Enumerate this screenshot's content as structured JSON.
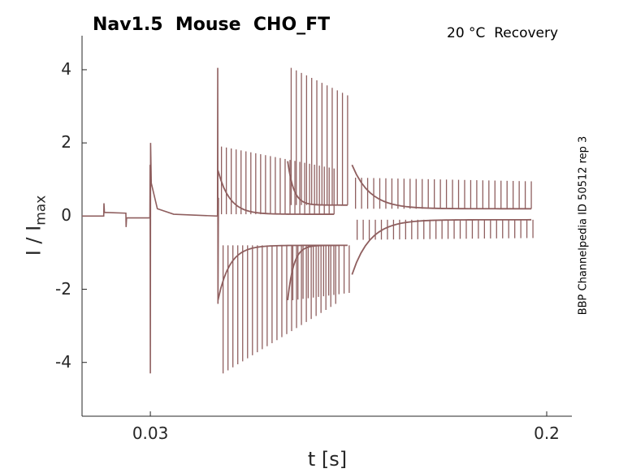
{
  "chart_data": {
    "type": "line",
    "title": "Nav1.5  Mouse  CHO_FT",
    "subtitle": "20 °C  Recovery",
    "side_label": "BBP Channelpedia ID 50512 rep 3",
    "xlabel": "t [s]",
    "ylabel_main": "I / I",
    "ylabel_sub": "max",
    "xlim": [
      0.0007,
      0.2108
    ],
    "ylim": [
      -5.47,
      4.93
    ],
    "xticks": [
      {
        "value": 0.03,
        "label": "0.03"
      },
      {
        "value": 0.2,
        "label": "0.2"
      }
    ],
    "yticks": [
      {
        "value": 4,
        "label": "4"
      },
      {
        "value": 2,
        "label": "2"
      },
      {
        "value": 0,
        "label": "0"
      },
      {
        "value": -2,
        "label": "-2"
      },
      {
        "value": -4,
        "label": "-4"
      }
    ],
    "color": "#8f5f5f",
    "baseline": [
      [
        0.0007,
        0
      ],
      [
        0.01,
        0.0
      ],
      [
        0.0101,
        0.35
      ],
      [
        0.0103,
        0.1
      ],
      [
        0.0195,
        0.08
      ],
      [
        0.0196,
        -0.3
      ],
      [
        0.0198,
        -0.05
      ],
      [
        0.0298,
        -0.05
      ],
      [
        0.0299,
        1.4
      ],
      [
        0.03,
        -4.3
      ],
      [
        0.0301,
        2.0
      ],
      [
        0.0304,
        0.9
      ],
      [
        0.033,
        0.2
      ],
      [
        0.04,
        0.05
      ],
      [
        0.0588,
        0.0
      ],
      [
        0.0589,
        4.05
      ],
      [
        0.059,
        -2.4
      ],
      [
        0.0592,
        0.5
      ]
    ],
    "spike_groups": [
      {
        "t0": 0.0605,
        "step": 0.0021,
        "count": 24,
        "up": [
          1.9,
          1.3
        ],
        "down": [
          -4.3,
          -2.4
        ],
        "level_hi": 0.05,
        "level_lo": -0.8
      },
      {
        "t0": 0.0904,
        "step": 0.0022,
        "count": 12,
        "up": [
          4.05,
          3.3
        ],
        "down": [
          -2.3,
          -2.1
        ],
        "level_hi": 0.3,
        "level_lo": -0.8
      },
      {
        "t0": 0.118,
        "step": 0.0026,
        "count": 30,
        "up": [
          1.05,
          0.95
        ],
        "down": [
          -0.65,
          -0.6
        ],
        "level_hi": 0.2,
        "level_lo": -0.1
      }
    ]
  }
}
